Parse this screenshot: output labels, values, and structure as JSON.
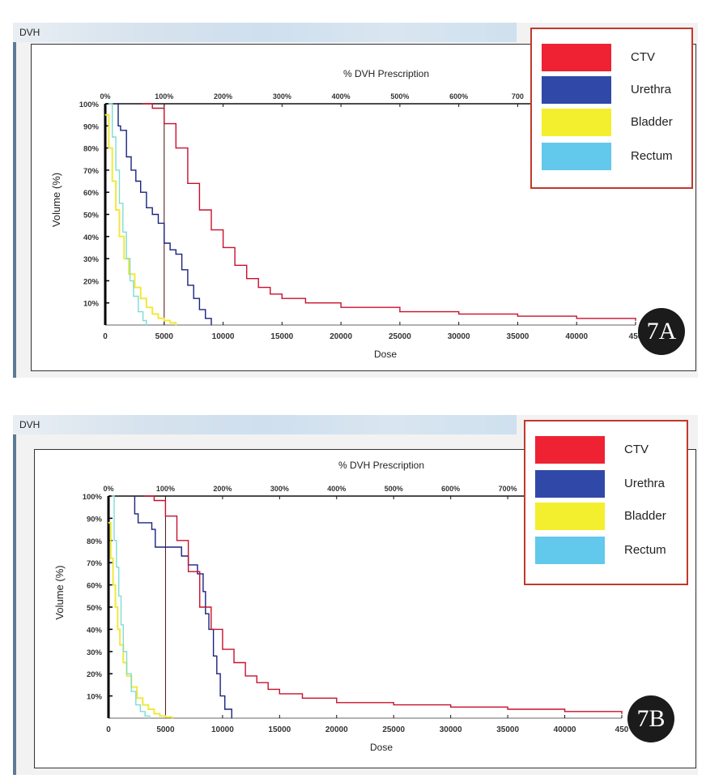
{
  "figure": {
    "panels": [
      {
        "id": "7A",
        "window_title": "DVH",
        "badge": "7A",
        "legend": [
          {
            "label": "CTV",
            "color": "#ee2233"
          },
          {
            "label": "Urethra",
            "color": "#3049a8"
          },
          {
            "label": "Bladder",
            "color": "#f3ef2e"
          },
          {
            "label": "Rectum",
            "color": "#62c8ec"
          }
        ]
      },
      {
        "id": "7B",
        "window_title": "DVH",
        "badge": "7B",
        "legend": [
          {
            "label": "CTV",
            "color": "#ee2233"
          },
          {
            "label": "Urethra",
            "color": "#3049a8"
          },
          {
            "label": "Bladder",
            "color": "#f3ef2e"
          },
          {
            "label": "Rectum",
            "color": "#62c8ec"
          }
        ]
      }
    ]
  },
  "chart_data": [
    {
      "type": "line",
      "title": "% DVH Prescription",
      "xlabel": "Dose",
      "ylabel": "Volume (%)",
      "xlim": [
        0,
        45000
      ],
      "ylim": [
        0,
        100
      ],
      "x_ticks": [
        "0",
        "5000",
        "10000",
        "15000",
        "20000",
        "25000",
        "30000",
        "35000",
        "40000",
        "450"
      ],
      "y_ticks": [
        "10%",
        "20%",
        "30%",
        "40%",
        "50%",
        "60%",
        "70%",
        "80%",
        "90%",
        "100%"
      ],
      "top_ticks": [
        "0%",
        "100%",
        "200%",
        "300%",
        "400%",
        "500%",
        "600%",
        "700"
      ],
      "prescription_dose": 5000,
      "legend_position": "top-right",
      "series": [
        {
          "name": "CTV",
          "color": "#c8102e",
          "x": [
            3200,
            4000,
            5000,
            6000,
            7000,
            8000,
            9000,
            10000,
            11000,
            12000,
            13000,
            14000,
            15000,
            17000,
            20000,
            25000,
            30000,
            35000,
            40000,
            45000
          ],
          "y": [
            100,
            98,
            91,
            80,
            64,
            52,
            43,
            35,
            27,
            21,
            17,
            14,
            12,
            10,
            8,
            6,
            5,
            4,
            3,
            2
          ]
        },
        {
          "name": "Urethra",
          "color": "#1a237e",
          "x": [
            1000,
            1100,
            1300,
            1800,
            2200,
            2600,
            3000,
            3500,
            4000,
            4500,
            5000,
            5500,
            6000,
            6500,
            7000,
            7500,
            8000,
            8500,
            9000
          ],
          "y": [
            100,
            90,
            88,
            76,
            70,
            65,
            60,
            53,
            50,
            46,
            37,
            34,
            32,
            25,
            18,
            12,
            7,
            3,
            0
          ]
        },
        {
          "name": "Bladder",
          "color": "#f0e93c",
          "x": [
            0,
            300,
            600,
            900,
            1200,
            1600,
            2000,
            2500,
            3000,
            3500,
            4000,
            4500,
            5000,
            5500,
            6000
          ],
          "y": [
            95,
            80,
            65,
            52,
            40,
            30,
            23,
            17,
            12,
            8,
            5,
            3,
            2,
            1,
            0
          ]
        },
        {
          "name": "Rectum",
          "color": "#7fdcd6",
          "x": [
            300,
            600,
            900,
            1200,
            1500,
            1800,
            2100,
            2400,
            2800,
            3200,
            3500
          ],
          "y": [
            100,
            85,
            70,
            55,
            42,
            30,
            20,
            13,
            6,
            2,
            0
          ]
        }
      ]
    },
    {
      "type": "line",
      "title": "% DVH Prescription",
      "xlabel": "Dose",
      "ylabel": "Volume (%)",
      "xlim": [
        0,
        45000
      ],
      "ylim": [
        0,
        100
      ],
      "x_ticks": [
        "0",
        "5000",
        "10000",
        "15000",
        "20000",
        "25000",
        "30000",
        "35000",
        "40000",
        "450"
      ],
      "y_ticks": [
        "10%",
        "20%",
        "30%",
        "40%",
        "50%",
        "60%",
        "70%",
        "80%",
        "90%",
        "100%"
      ],
      "top_ticks": [
        "0%",
        "100%",
        "200%",
        "300%",
        "400%",
        "500%",
        "600%",
        "700%"
      ],
      "prescription_dose": 5000,
      "legend_position": "top-right",
      "series": [
        {
          "name": "CTV",
          "color": "#c8102e",
          "x": [
            3200,
            4000,
            5000,
            6000,
            7000,
            8000,
            9000,
            10000,
            11000,
            12000,
            13000,
            14000,
            15000,
            17000,
            20000,
            25000,
            30000,
            35000,
            40000,
            45000
          ],
          "y": [
            100,
            98,
            91,
            80,
            66,
            50,
            40,
            31,
            25,
            19,
            16,
            13,
            11,
            9,
            7,
            6,
            5,
            4,
            3,
            2
          ]
        },
        {
          "name": "Urethra",
          "color": "#1a237e",
          "x": [
            2300,
            2300,
            2600,
            2600,
            3800,
            4100,
            4100,
            6400,
            6400,
            7000,
            7000,
            7800,
            7800,
            8300,
            8500,
            8800,
            9200,
            9500,
            9800,
            10200,
            10800,
            10800
          ],
          "y": [
            100,
            92,
            92,
            88,
            85,
            81,
            77,
            77,
            73,
            73,
            69,
            69,
            65,
            57,
            47,
            40,
            28,
            20,
            10,
            4,
            4,
            0
          ]
        },
        {
          "name": "Bladder",
          "color": "#f0e93c",
          "x": [
            0,
            200,
            400,
            600,
            800,
            1000,
            1300,
            1600,
            2000,
            2500,
            3000,
            3500,
            4000,
            4500,
            5000,
            5600
          ],
          "y": [
            88,
            72,
            60,
            50,
            40,
            33,
            25,
            19,
            14,
            9,
            6,
            4,
            2,
            1,
            0.5,
            0
          ]
        },
        {
          "name": "Rectum",
          "color": "#7fdcd6",
          "x": [
            300,
            500,
            700,
            900,
            1100,
            1300,
            1600,
            2000,
            2400,
            2800,
            3200,
            3600
          ],
          "y": [
            100,
            80,
            68,
            55,
            42,
            30,
            20,
            12,
            6,
            3,
            1,
            0
          ]
        }
      ]
    }
  ]
}
